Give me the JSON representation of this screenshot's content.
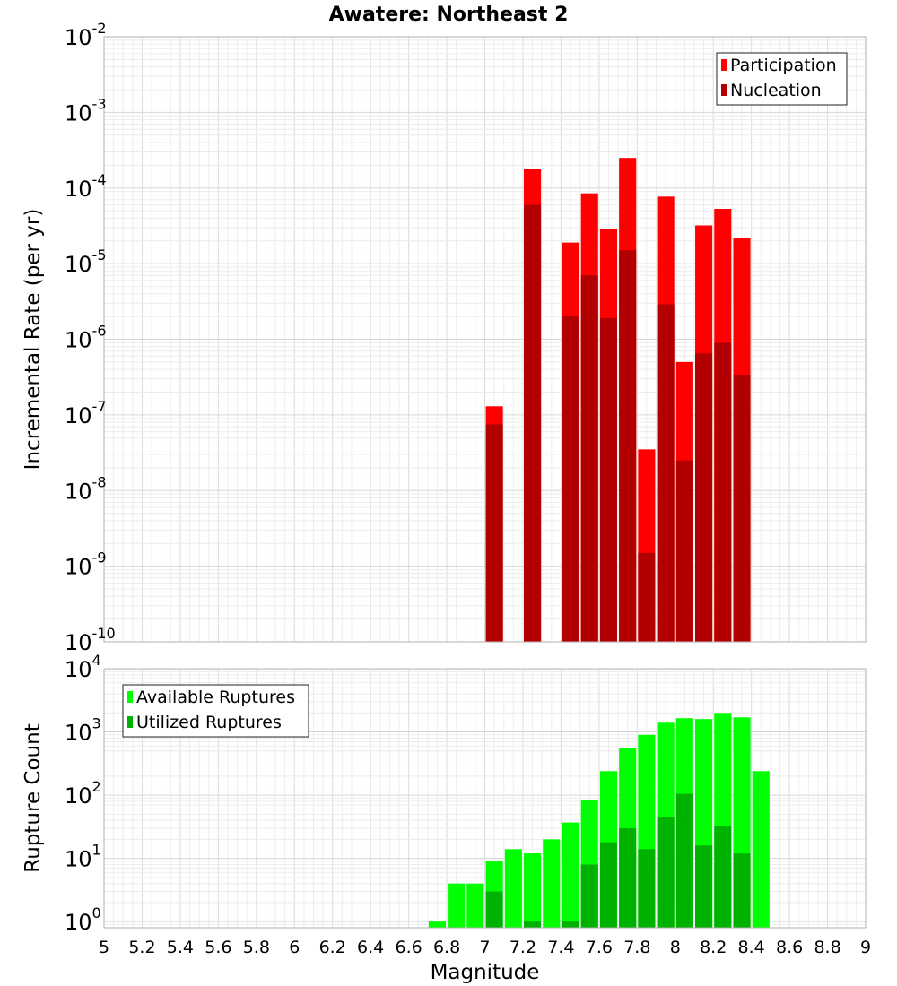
{
  "title": "Awatere: Northeast 2",
  "chart_data": [
    {
      "type": "bar",
      "yscale": "log",
      "ylabel": "Incremental Rate (per yr)",
      "xlabel": "",
      "xlim": [
        5,
        9
      ],
      "ylim": [
        1e-10,
        0.01
      ],
      "y_exponents": [
        -10,
        -9,
        -8,
        -7,
        -6,
        -5,
        -4,
        -3,
        -2
      ],
      "bar_width": 0.09,
      "grid": true,
      "legend_position": "top-right",
      "colors": {
        "participation": "#ff0000",
        "nucleation": "#b20000"
      },
      "series": [
        {
          "name": "Participation",
          "x": [
            7.05,
            7.25,
            7.45,
            7.55,
            7.65,
            7.75,
            7.85,
            7.95,
            8.05,
            8.15,
            8.25,
            8.35
          ],
          "values": [
            1.3e-07,
            0.00018,
            1.9e-05,
            8.5e-05,
            2.9e-05,
            0.00025,
            3.5e-08,
            7.7e-05,
            5e-07,
            3.2e-05,
            5.3e-05,
            2.2e-05
          ]
        },
        {
          "name": "Nucleation",
          "x": [
            7.05,
            7.25,
            7.45,
            7.55,
            7.65,
            7.75,
            7.85,
            7.95,
            8.05,
            8.15,
            8.25,
            8.35
          ],
          "values": [
            7.5e-08,
            6e-05,
            2e-06,
            7e-06,
            1.9e-06,
            1.5e-05,
            1.5e-09,
            2.9e-06,
            2.5e-08,
            6.5e-07,
            9e-07,
            3.4e-07
          ]
        }
      ]
    },
    {
      "type": "bar",
      "yscale": "log",
      "ylabel": "Rupture Count",
      "xlabel": "Magnitude",
      "xlim": [
        5,
        9
      ],
      "ylim": [
        0.8,
        10000
      ],
      "y_exponents": [
        0,
        1,
        2,
        3,
        4
      ],
      "x_ticks": [
        "5",
        "5.2",
        "5.4",
        "5.6",
        "5.8",
        "6",
        "6.2",
        "6.4",
        "6.6",
        "6.8",
        "7",
        "7.2",
        "7.4",
        "7.6",
        "7.8",
        "8",
        "8.2",
        "8.4",
        "8.6",
        "8.8",
        "9"
      ],
      "bar_width": 0.09,
      "grid": true,
      "legend_position": "top-left",
      "colors": {
        "available": "#00ff00",
        "utilized": "#00b200"
      },
      "series": [
        {
          "name": "Available Ruptures",
          "x": [
            6.75,
            6.85,
            6.95,
            7.05,
            7.15,
            7.25,
            7.35,
            7.45,
            7.55,
            7.65,
            7.75,
            7.85,
            7.95,
            8.05,
            8.15,
            8.25,
            8.35,
            8.45
          ],
          "values": [
            1,
            4,
            4,
            9,
            14,
            12,
            20,
            37,
            85,
            240,
            560,
            900,
            1400,
            1650,
            1600,
            2000,
            1700,
            240
          ]
        },
        {
          "name": "Utilized Ruptures",
          "x": [
            7.05,
            7.25,
            7.45,
            7.55,
            7.65,
            7.75,
            7.85,
            7.95,
            8.05,
            8.15,
            8.25,
            8.35
          ],
          "values": [
            3,
            1,
            1,
            8,
            18,
            30,
            14,
            45,
            105,
            16,
            32,
            12
          ]
        }
      ]
    }
  ]
}
